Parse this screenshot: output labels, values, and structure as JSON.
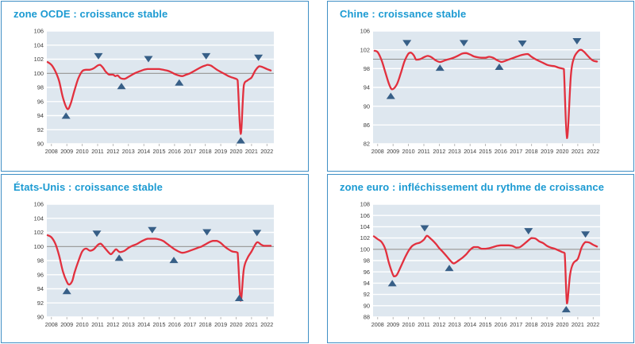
{
  "colors": {
    "title": "#1b9ad2",
    "panel_border": "#3f8fc5",
    "plot_bg": "#dee7ef",
    "grid_line": "#ffffff",
    "reference_line": "#8f8f8f",
    "series_line": "#e2303e",
    "marker": "#375f87",
    "tick_text": "#3c3c3c",
    "axis_tick": "#a8a8a8"
  },
  "chart_data": [
    {
      "type": "line",
      "title": "zone OCDE : croissance stable",
      "ylim": [
        90,
        106
      ],
      "ytick_step": 2,
      "refline": 100,
      "xlim": [
        2007.7,
        2022.45
      ],
      "x_years": [
        "2008",
        "2009",
        "2010",
        "2011",
        "2012",
        "2013",
        "2014",
        "2015",
        "2016",
        "2017",
        "2018",
        "2019",
        "2020",
        "2021",
        "2022"
      ],
      "points": [
        [
          2007.75,
          101.6
        ],
        [
          2008,
          101.2
        ],
        [
          2008.25,
          100.3
        ],
        [
          2008.5,
          98.9
        ],
        [
          2008.75,
          96.5
        ],
        [
          2009.05,
          94.9
        ],
        [
          2009.25,
          95.7
        ],
        [
          2009.5,
          97.6
        ],
        [
          2009.75,
          99.3
        ],
        [
          2010,
          100.3
        ],
        [
          2010.25,
          100.5
        ],
        [
          2010.5,
          100.5
        ],
        [
          2010.75,
          100.7
        ],
        [
          2011,
          101.1
        ],
        [
          2011.15,
          101.2
        ],
        [
          2011.35,
          100.8
        ],
        [
          2011.5,
          100.3
        ],
        [
          2011.75,
          99.8
        ],
        [
          2012,
          99.8
        ],
        [
          2012.15,
          99.6
        ],
        [
          2012.3,
          99.7
        ],
        [
          2012.5,
          99.3
        ],
        [
          2012.75,
          99.2
        ],
        [
          2013,
          99.5
        ],
        [
          2013.25,
          99.8
        ],
        [
          2013.5,
          100.1
        ],
        [
          2013.75,
          100.3
        ],
        [
          2014,
          100.5
        ],
        [
          2014.25,
          100.6
        ],
        [
          2014.5,
          100.6
        ],
        [
          2014.75,
          100.6
        ],
        [
          2015,
          100.6
        ],
        [
          2015.25,
          100.5
        ],
        [
          2015.5,
          100.4
        ],
        [
          2015.75,
          100.2
        ],
        [
          2016,
          99.9
        ],
        [
          2016.25,
          99.7
        ],
        [
          2016.5,
          99.6
        ],
        [
          2016.75,
          99.8
        ],
        [
          2017,
          100
        ],
        [
          2017.25,
          100.3
        ],
        [
          2017.5,
          100.6
        ],
        [
          2017.75,
          100.9
        ],
        [
          2018,
          101.1
        ],
        [
          2018.15,
          101.2
        ],
        [
          2018.35,
          101.1
        ],
        [
          2018.5,
          100.9
        ],
        [
          2018.75,
          100.5
        ],
        [
          2019,
          100.2
        ],
        [
          2019.25,
          99.9
        ],
        [
          2019.5,
          99.6
        ],
        [
          2019.75,
          99.4
        ],
        [
          2020,
          99.2
        ],
        [
          2020.1,
          99
        ],
        [
          2020.3,
          91.4
        ],
        [
          2020.5,
          98.3
        ],
        [
          2020.75,
          99
        ],
        [
          2021,
          99.4
        ],
        [
          2021.25,
          100.4
        ],
        [
          2021.5,
          101
        ],
        [
          2021.7,
          100.9
        ],
        [
          2022,
          100.6
        ],
        [
          2022.25,
          100.4
        ]
      ],
      "markers": [
        {
          "x": 2008.95,
          "y": 94.0,
          "dir": "up"
        },
        {
          "x": 2011.05,
          "y": 102.4,
          "dir": "down"
        },
        {
          "x": 2012.55,
          "y": 98.2,
          "dir": "up"
        },
        {
          "x": 2014.3,
          "y": 102.0,
          "dir": "down"
        },
        {
          "x": 2016.3,
          "y": 98.7,
          "dir": "up"
        },
        {
          "x": 2018.05,
          "y": 102.4,
          "dir": "down"
        },
        {
          "x": 2020.3,
          "y": 90.5,
          "dir": "up"
        },
        {
          "x": 2021.45,
          "y": 102.2,
          "dir": "down"
        }
      ]
    },
    {
      "type": "line",
      "title": "Chine : croissance stable",
      "ylim": [
        82,
        106
      ],
      "ytick_step": 4,
      "refline": 100,
      "xlim": [
        2007.7,
        2022.45
      ],
      "x_years": [
        "2008",
        "2009",
        "2010",
        "2011",
        "2012",
        "2013",
        "2014",
        "2015",
        "2016",
        "2017",
        "2018",
        "2019",
        "2020",
        "2021",
        "2022"
      ],
      "points": [
        [
          2007.8,
          101.8
        ],
        [
          2008,
          101.5
        ],
        [
          2008.25,
          99.8
        ],
        [
          2008.5,
          97.2
        ],
        [
          2008.75,
          94.6
        ],
        [
          2008.95,
          93.6
        ],
        [
          2009.25,
          94.7
        ],
        [
          2009.5,
          97
        ],
        [
          2009.75,
          99.6
        ],
        [
          2010,
          101.2
        ],
        [
          2010.15,
          101.4
        ],
        [
          2010.35,
          100.8
        ],
        [
          2010.5,
          99.9
        ],
        [
          2010.75,
          100
        ],
        [
          2011,
          100.4
        ],
        [
          2011.25,
          100.7
        ],
        [
          2011.5,
          100.4
        ],
        [
          2011.75,
          99.8
        ],
        [
          2012.05,
          99.4
        ],
        [
          2012.25,
          99.6
        ],
        [
          2012.5,
          99.9
        ],
        [
          2012.75,
          100.1
        ],
        [
          2013,
          100.4
        ],
        [
          2013.25,
          100.8
        ],
        [
          2013.5,
          101.2
        ],
        [
          2013.75,
          101.3
        ],
        [
          2014,
          101
        ],
        [
          2014.25,
          100.6
        ],
        [
          2014.5,
          100.4
        ],
        [
          2014.75,
          100.3
        ],
        [
          2015,
          100.3
        ],
        [
          2015.25,
          100.5
        ],
        [
          2015.5,
          100.3
        ],
        [
          2015.75,
          99.8
        ],
        [
          2016.05,
          99.4
        ],
        [
          2016.25,
          99.6
        ],
        [
          2016.5,
          99.9
        ],
        [
          2016.75,
          100.2
        ],
        [
          2017,
          100.5
        ],
        [
          2017.25,
          100.8
        ],
        [
          2017.5,
          101
        ],
        [
          2017.75,
          101.1
        ],
        [
          2018,
          100.5
        ],
        [
          2018.25,
          100
        ],
        [
          2018.5,
          99.6
        ],
        [
          2018.75,
          99.2
        ],
        [
          2019,
          98.8
        ],
        [
          2019.25,
          98.6
        ],
        [
          2019.5,
          98.5
        ],
        [
          2019.75,
          98.2
        ],
        [
          2020,
          98
        ],
        [
          2020.1,
          97.9
        ],
        [
          2020.3,
          83.2
        ],
        [
          2020.55,
          96.5
        ],
        [
          2020.75,
          100.2
        ],
        [
          2021,
          101.6
        ],
        [
          2021.2,
          102
        ],
        [
          2021.4,
          101.6
        ],
        [
          2021.6,
          100.9
        ],
        [
          2021.8,
          100.2
        ],
        [
          2022,
          99.7
        ],
        [
          2022.25,
          99.5
        ]
      ],
      "markers": [
        {
          "x": 2008.85,
          "y": 92.2,
          "dir": "up"
        },
        {
          "x": 2009.9,
          "y": 103.4,
          "dir": "down"
        },
        {
          "x": 2012.05,
          "y": 98.2,
          "dir": "up"
        },
        {
          "x": 2013.6,
          "y": 103.4,
          "dir": "down"
        },
        {
          "x": 2015.9,
          "y": 98.4,
          "dir": "up"
        },
        {
          "x": 2017.4,
          "y": 103.3,
          "dir": "down"
        },
        {
          "x": 2020.95,
          "y": 103.8,
          "dir": "down"
        }
      ]
    },
    {
      "type": "line",
      "title": "États-Unis : croissance stable",
      "ylim": [
        90,
        106
      ],
      "ytick_step": 2,
      "refline": 100,
      "xlim": [
        2007.7,
        2022.45
      ],
      "x_years": [
        "2008",
        "2009",
        "2010",
        "2011",
        "2012",
        "2013",
        "2014",
        "2015",
        "2016",
        "2017",
        "2018",
        "2019",
        "2020",
        "2021",
        "2022"
      ],
      "points": [
        [
          2007.75,
          101.6
        ],
        [
          2008,
          101.3
        ],
        [
          2008.25,
          100.4
        ],
        [
          2008.5,
          98.7
        ],
        [
          2008.75,
          96.4
        ],
        [
          2009,
          95
        ],
        [
          2009.15,
          94.6
        ],
        [
          2009.35,
          95.1
        ],
        [
          2009.5,
          96.3
        ],
        [
          2009.75,
          97.9
        ],
        [
          2010,
          99.3
        ],
        [
          2010.25,
          99.7
        ],
        [
          2010.5,
          99.4
        ],
        [
          2010.75,
          99.6
        ],
        [
          2011,
          100.2
        ],
        [
          2011.2,
          100.4
        ],
        [
          2011.5,
          99.7
        ],
        [
          2011.85,
          98.9
        ],
        [
          2012.05,
          99.3
        ],
        [
          2012.2,
          99.6
        ],
        [
          2012.45,
          99.2
        ],
        [
          2012.75,
          99.4
        ],
        [
          2013,
          99.8
        ],
        [
          2013.25,
          100.1
        ],
        [
          2013.5,
          100.3
        ],
        [
          2013.75,
          100.6
        ],
        [
          2014,
          100.9
        ],
        [
          2014.25,
          101.1
        ],
        [
          2014.5,
          101.1
        ],
        [
          2014.75,
          101.1
        ],
        [
          2015,
          101
        ],
        [
          2015.25,
          100.8
        ],
        [
          2015.5,
          100.4
        ],
        [
          2015.75,
          100
        ],
        [
          2016,
          99.6
        ],
        [
          2016.25,
          99.3
        ],
        [
          2016.5,
          99.1
        ],
        [
          2016.75,
          99.2
        ],
        [
          2017,
          99.4
        ],
        [
          2017.25,
          99.6
        ],
        [
          2017.5,
          99.8
        ],
        [
          2017.75,
          100
        ],
        [
          2018,
          100.3
        ],
        [
          2018.25,
          100.6
        ],
        [
          2018.5,
          100.8
        ],
        [
          2018.75,
          100.8
        ],
        [
          2019,
          100.5
        ],
        [
          2019.25,
          100
        ],
        [
          2019.5,
          99.6
        ],
        [
          2019.75,
          99.3
        ],
        [
          2020,
          99.2
        ],
        [
          2020.1,
          99.1
        ],
        [
          2020.3,
          92.3
        ],
        [
          2020.5,
          96.8
        ],
        [
          2020.75,
          98.4
        ],
        [
          2021,
          99.3
        ],
        [
          2021.25,
          100.3
        ],
        [
          2021.4,
          100.6
        ],
        [
          2021.6,
          100.3
        ],
        [
          2021.8,
          100.1
        ],
        [
          2022,
          100.1
        ],
        [
          2022.25,
          100.1
        ]
      ],
      "markers": [
        {
          "x": 2009,
          "y": 93.7,
          "dir": "up"
        },
        {
          "x": 2010.95,
          "y": 101.8,
          "dir": "down"
        },
        {
          "x": 2012.4,
          "y": 98.4,
          "dir": "up"
        },
        {
          "x": 2014.55,
          "y": 102.3,
          "dir": "down"
        },
        {
          "x": 2015.95,
          "y": 98.1,
          "dir": "up"
        },
        {
          "x": 2018.1,
          "y": 102.0,
          "dir": "down"
        },
        {
          "x": 2020.2,
          "y": 92.7,
          "dir": "up"
        },
        {
          "x": 2021.35,
          "y": 101.9,
          "dir": "down"
        }
      ]
    },
    {
      "type": "line",
      "title": "zone euro : infléchissement du rythme de croissance",
      "ylim": [
        88,
        108
      ],
      "ytick_step": 2,
      "refline": 100,
      "xlim": [
        2007.7,
        2022.45
      ],
      "x_years": [
        "2008",
        "2009",
        "2010",
        "2011",
        "2012",
        "2013",
        "2014",
        "2015",
        "2016",
        "2017",
        "2018",
        "2019",
        "2020",
        "2021",
        "2022"
      ],
      "points": [
        [
          2007.75,
          102.3
        ],
        [
          2008,
          101.8
        ],
        [
          2008.25,
          101.3
        ],
        [
          2008.5,
          100
        ],
        [
          2008.75,
          97.4
        ],
        [
          2009.05,
          95.2
        ],
        [
          2009.25,
          95.5
        ],
        [
          2009.5,
          96.9
        ],
        [
          2009.75,
          98.4
        ],
        [
          2010,
          99.7
        ],
        [
          2010.25,
          100.6
        ],
        [
          2010.5,
          101
        ],
        [
          2010.75,
          101.2
        ],
        [
          2011,
          101.7
        ],
        [
          2011.2,
          102.4
        ],
        [
          2011.4,
          102
        ],
        [
          2011.6,
          101.5
        ],
        [
          2011.8,
          100.9
        ],
        [
          2012,
          100.2
        ],
        [
          2012.25,
          99.5
        ],
        [
          2012.5,
          98.7
        ],
        [
          2012.75,
          97.9
        ],
        [
          2012.95,
          97.5
        ],
        [
          2013.25,
          98
        ],
        [
          2013.5,
          98.5
        ],
        [
          2013.75,
          99.1
        ],
        [
          2014,
          99.9
        ],
        [
          2014.25,
          100.4
        ],
        [
          2014.5,
          100.4
        ],
        [
          2014.75,
          100.1
        ],
        [
          2015,
          100.1
        ],
        [
          2015.25,
          100.2
        ],
        [
          2015.5,
          100.4
        ],
        [
          2015.75,
          100.6
        ],
        [
          2016,
          100.7
        ],
        [
          2016.25,
          100.7
        ],
        [
          2016.5,
          100.7
        ],
        [
          2016.75,
          100.6
        ],
        [
          2017,
          100.3
        ],
        [
          2017.25,
          100.4
        ],
        [
          2017.5,
          100.9
        ],
        [
          2017.75,
          101.5
        ],
        [
          2018,
          102
        ],
        [
          2018.25,
          101.9
        ],
        [
          2018.5,
          101.4
        ],
        [
          2018.75,
          101.1
        ],
        [
          2019,
          100.6
        ],
        [
          2019.25,
          100.3
        ],
        [
          2019.5,
          100.1
        ],
        [
          2019.75,
          99.8
        ],
        [
          2020,
          99.5
        ],
        [
          2020.15,
          99.3
        ],
        [
          2020.3,
          90.4
        ],
        [
          2020.5,
          95.5
        ],
        [
          2020.7,
          97.5
        ],
        [
          2021,
          98.3
        ],
        [
          2021.25,
          100.3
        ],
        [
          2021.5,
          101.3
        ],
        [
          2021.75,
          101.2
        ],
        [
          2022,
          100.8
        ],
        [
          2022.25,
          100.5
        ]
      ],
      "markers": [
        {
          "x": 2008.95,
          "y": 94.0,
          "dir": "up"
        },
        {
          "x": 2011.05,
          "y": 103.7,
          "dir": "down"
        },
        {
          "x": 2012.65,
          "y": 96.7,
          "dir": "up"
        },
        {
          "x": 2017.8,
          "y": 103.2,
          "dir": "down"
        },
        {
          "x": 2020.25,
          "y": 89.4,
          "dir": "up"
        },
        {
          "x": 2021.5,
          "y": 102.6,
          "dir": "down"
        }
      ]
    }
  ]
}
